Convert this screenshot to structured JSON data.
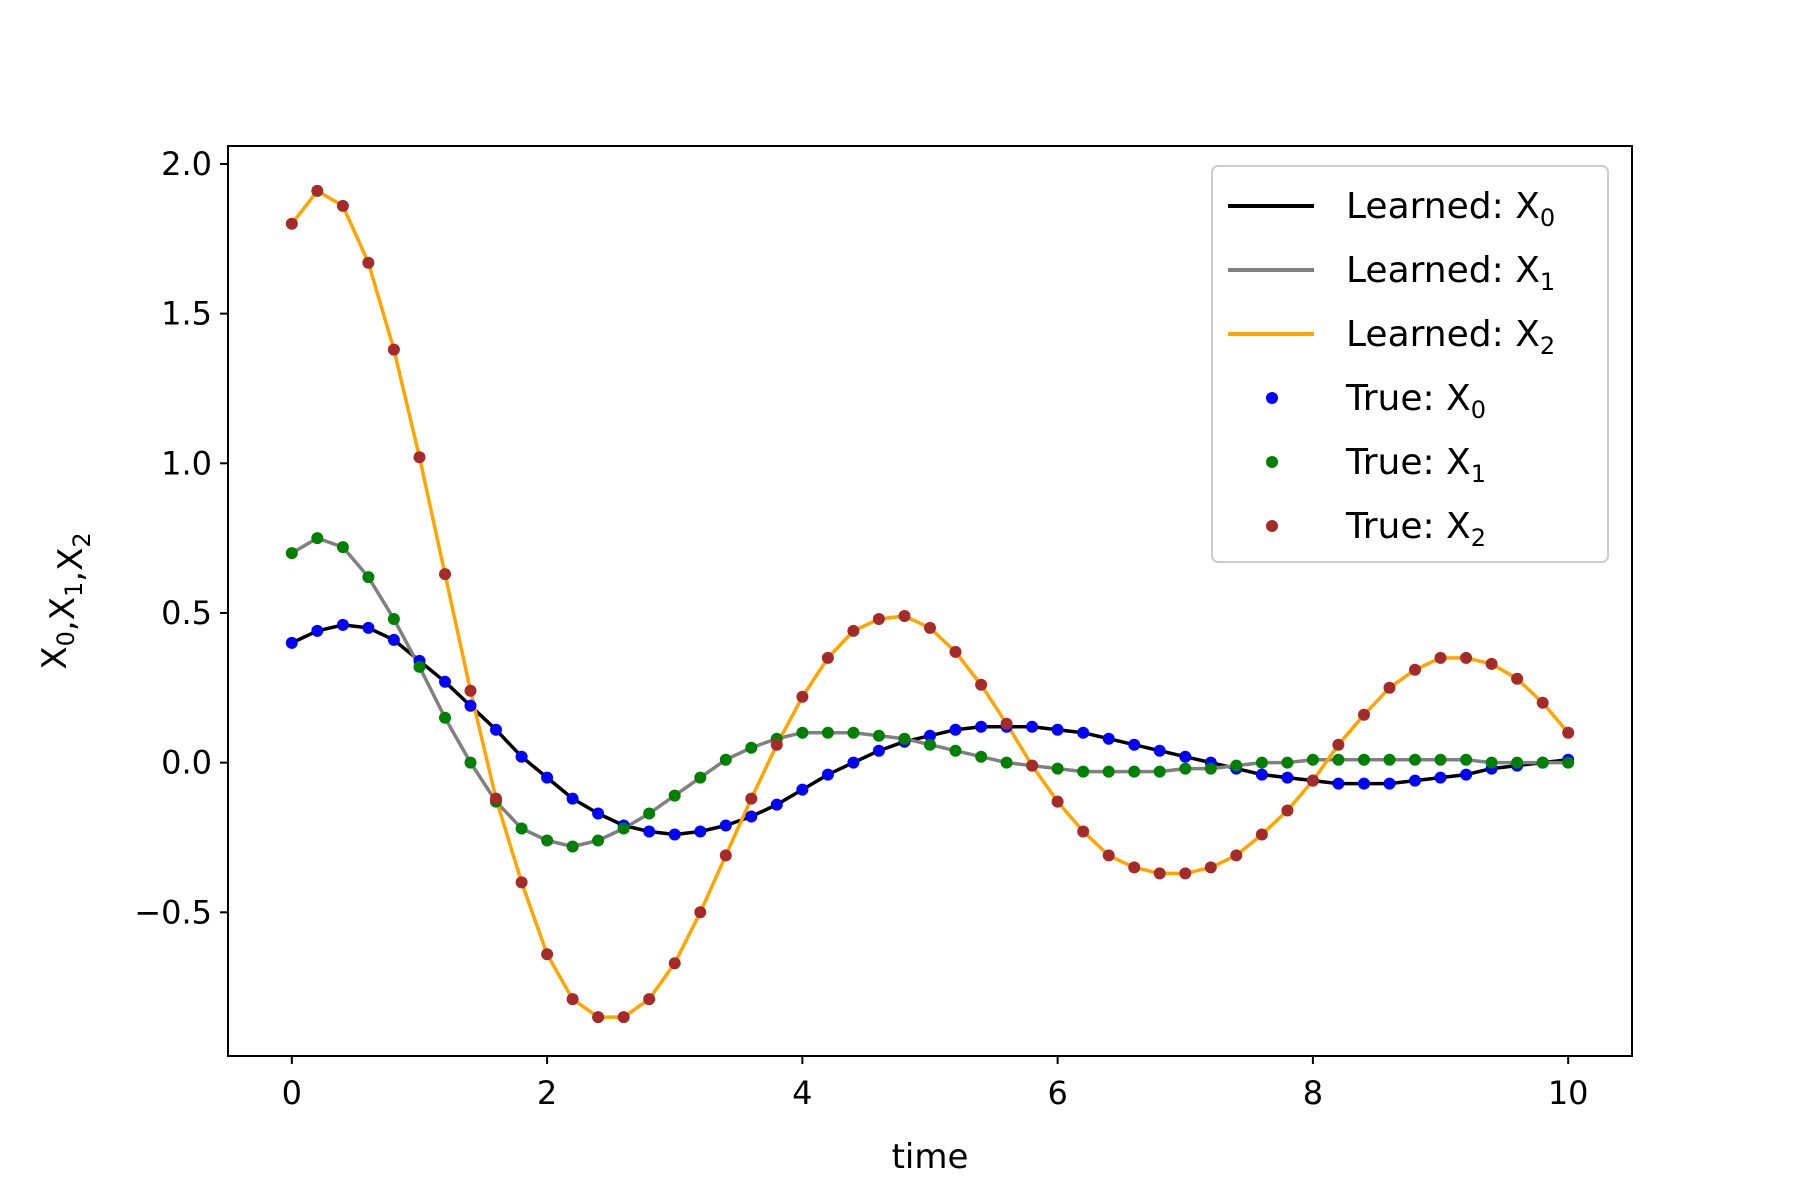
{
  "chart_data": {
    "type": "line",
    "title": "",
    "xlabel": "time",
    "ylabel": {
      "parts": [
        {
          "base": "X",
          "sub": "0"
        },
        {
          "base": ",X",
          "sub": "1"
        },
        {
          "base": ",X",
          "sub": "2"
        }
      ]
    },
    "xlim": [
      -0.5,
      10.5
    ],
    "ylim": [
      -0.98,
      2.06
    ],
    "x_ticks": [
      0,
      2,
      4,
      6,
      8,
      10
    ],
    "x_tick_labels": [
      "0",
      "2",
      "4",
      "6",
      "8",
      "10"
    ],
    "y_ticks": [
      -0.5,
      0.0,
      0.5,
      1.0,
      1.5,
      2.0
    ],
    "y_tick_labels": [
      "−0.5",
      "0.0",
      "0.5",
      "1.0",
      "1.5",
      "2.0"
    ],
    "grid": false,
    "legend_position": "top-right",
    "x": [
      0.0,
      0.2,
      0.4,
      0.6,
      0.8,
      1.0,
      1.2,
      1.4,
      1.6,
      1.8,
      2.0,
      2.2,
      2.4,
      2.6,
      2.8,
      3.0,
      3.2,
      3.4,
      3.6,
      3.8,
      4.0,
      4.2,
      4.4,
      4.6,
      4.8,
      5.0,
      5.2,
      5.4,
      5.6,
      5.8,
      6.0,
      6.2,
      6.4,
      6.6,
      6.8,
      7.0,
      7.2,
      7.4,
      7.6,
      7.8,
      8.0,
      8.2,
      8.4,
      8.6,
      8.8,
      9.0,
      9.2,
      9.4,
      9.6,
      9.8,
      10.0
    ],
    "series": [
      {
        "name": "Learned: X",
        "sub": "0",
        "kind": "line",
        "color": "#000000",
        "values": [
          0.4,
          0.44,
          0.46,
          0.45,
          0.41,
          0.34,
          0.27,
          0.19,
          0.11,
          0.02,
          -0.05,
          -0.12,
          -0.17,
          -0.21,
          -0.23,
          -0.24,
          -0.23,
          -0.21,
          -0.18,
          -0.14,
          -0.09,
          -0.04,
          0.0,
          0.04,
          0.07,
          0.09,
          0.11,
          0.12,
          0.12,
          0.12,
          0.11,
          0.1,
          0.08,
          0.06,
          0.04,
          0.02,
          0.0,
          -0.02,
          -0.04,
          -0.05,
          -0.06,
          -0.07,
          -0.07,
          -0.07,
          -0.06,
          -0.05,
          -0.04,
          -0.02,
          -0.01,
          0.0,
          0.01
        ]
      },
      {
        "name": "Learned: X",
        "sub": "1",
        "kind": "line",
        "color": "#808080",
        "values": [
          0.7,
          0.75,
          0.72,
          0.62,
          0.48,
          0.32,
          0.15,
          0.0,
          -0.13,
          -0.22,
          -0.26,
          -0.28,
          -0.26,
          -0.22,
          -0.17,
          -0.11,
          -0.05,
          0.01,
          0.05,
          0.08,
          0.1,
          0.1,
          0.1,
          0.09,
          0.08,
          0.06,
          0.04,
          0.02,
          0.0,
          -0.01,
          -0.02,
          -0.03,
          -0.03,
          -0.03,
          -0.03,
          -0.02,
          -0.02,
          -0.01,
          0.0,
          0.0,
          0.01,
          0.01,
          0.01,
          0.01,
          0.01,
          0.01,
          0.01,
          0.0,
          0.0,
          0.0,
          0.0
        ]
      },
      {
        "name": "Learned: X",
        "sub": "2",
        "kind": "line",
        "color": "#ffa500",
        "values": [
          1.8,
          1.91,
          1.86,
          1.67,
          1.38,
          1.02,
          0.63,
          0.24,
          -0.12,
          -0.4,
          -0.64,
          -0.79,
          -0.85,
          -0.85,
          -0.79,
          -0.67,
          -0.5,
          -0.31,
          -0.12,
          0.06,
          0.22,
          0.35,
          0.44,
          0.48,
          0.49,
          0.45,
          0.37,
          0.26,
          0.13,
          -0.01,
          -0.13,
          -0.23,
          -0.31,
          -0.35,
          -0.37,
          -0.37,
          -0.35,
          -0.31,
          -0.24,
          -0.16,
          -0.06,
          0.06,
          0.16,
          0.25,
          0.31,
          0.35,
          0.35,
          0.33,
          0.28,
          0.2,
          0.1
        ]
      },
      {
        "name": "True: X",
        "sub": "0",
        "kind": "scatter",
        "color": "#0000ff",
        "values": [
          0.4,
          0.44,
          0.46,
          0.45,
          0.41,
          0.34,
          0.27,
          0.19,
          0.11,
          0.02,
          -0.05,
          -0.12,
          -0.17,
          -0.21,
          -0.23,
          -0.24,
          -0.23,
          -0.21,
          -0.18,
          -0.14,
          -0.09,
          -0.04,
          0.0,
          0.04,
          0.07,
          0.09,
          0.11,
          0.12,
          0.12,
          0.12,
          0.11,
          0.1,
          0.08,
          0.06,
          0.04,
          0.02,
          0.0,
          -0.02,
          -0.04,
          -0.05,
          -0.06,
          -0.07,
          -0.07,
          -0.07,
          -0.06,
          -0.05,
          -0.04,
          -0.02,
          -0.01,
          0.0,
          0.01
        ]
      },
      {
        "name": "True: X",
        "sub": "1",
        "kind": "scatter",
        "color": "#008000",
        "values": [
          0.7,
          0.75,
          0.72,
          0.62,
          0.48,
          0.32,
          0.15,
          0.0,
          -0.13,
          -0.22,
          -0.26,
          -0.28,
          -0.26,
          -0.22,
          -0.17,
          -0.11,
          -0.05,
          0.01,
          0.05,
          0.08,
          0.1,
          0.1,
          0.1,
          0.09,
          0.08,
          0.06,
          0.04,
          0.02,
          0.0,
          -0.01,
          -0.02,
          -0.03,
          -0.03,
          -0.03,
          -0.03,
          -0.02,
          -0.02,
          -0.01,
          0.0,
          0.0,
          0.01,
          0.01,
          0.01,
          0.01,
          0.01,
          0.01,
          0.01,
          0.0,
          0.0,
          0.0,
          0.0
        ]
      },
      {
        "name": "True: X",
        "sub": "2",
        "kind": "scatter",
        "color": "#a52a2a",
        "values": [
          1.8,
          1.91,
          1.86,
          1.67,
          1.38,
          1.02,
          0.63,
          0.24,
          -0.12,
          -0.4,
          -0.64,
          -0.79,
          -0.85,
          -0.85,
          -0.79,
          -0.67,
          -0.5,
          -0.31,
          -0.12,
          0.06,
          0.22,
          0.35,
          0.44,
          0.48,
          0.49,
          0.45,
          0.37,
          0.26,
          0.13,
          -0.01,
          -0.13,
          -0.23,
          -0.31,
          -0.35,
          -0.37,
          -0.37,
          -0.35,
          -0.31,
          -0.24,
          -0.16,
          -0.06,
          0.06,
          0.16,
          0.25,
          0.31,
          0.35,
          0.35,
          0.33,
          0.28,
          0.2,
          0.1
        ]
      }
    ]
  }
}
